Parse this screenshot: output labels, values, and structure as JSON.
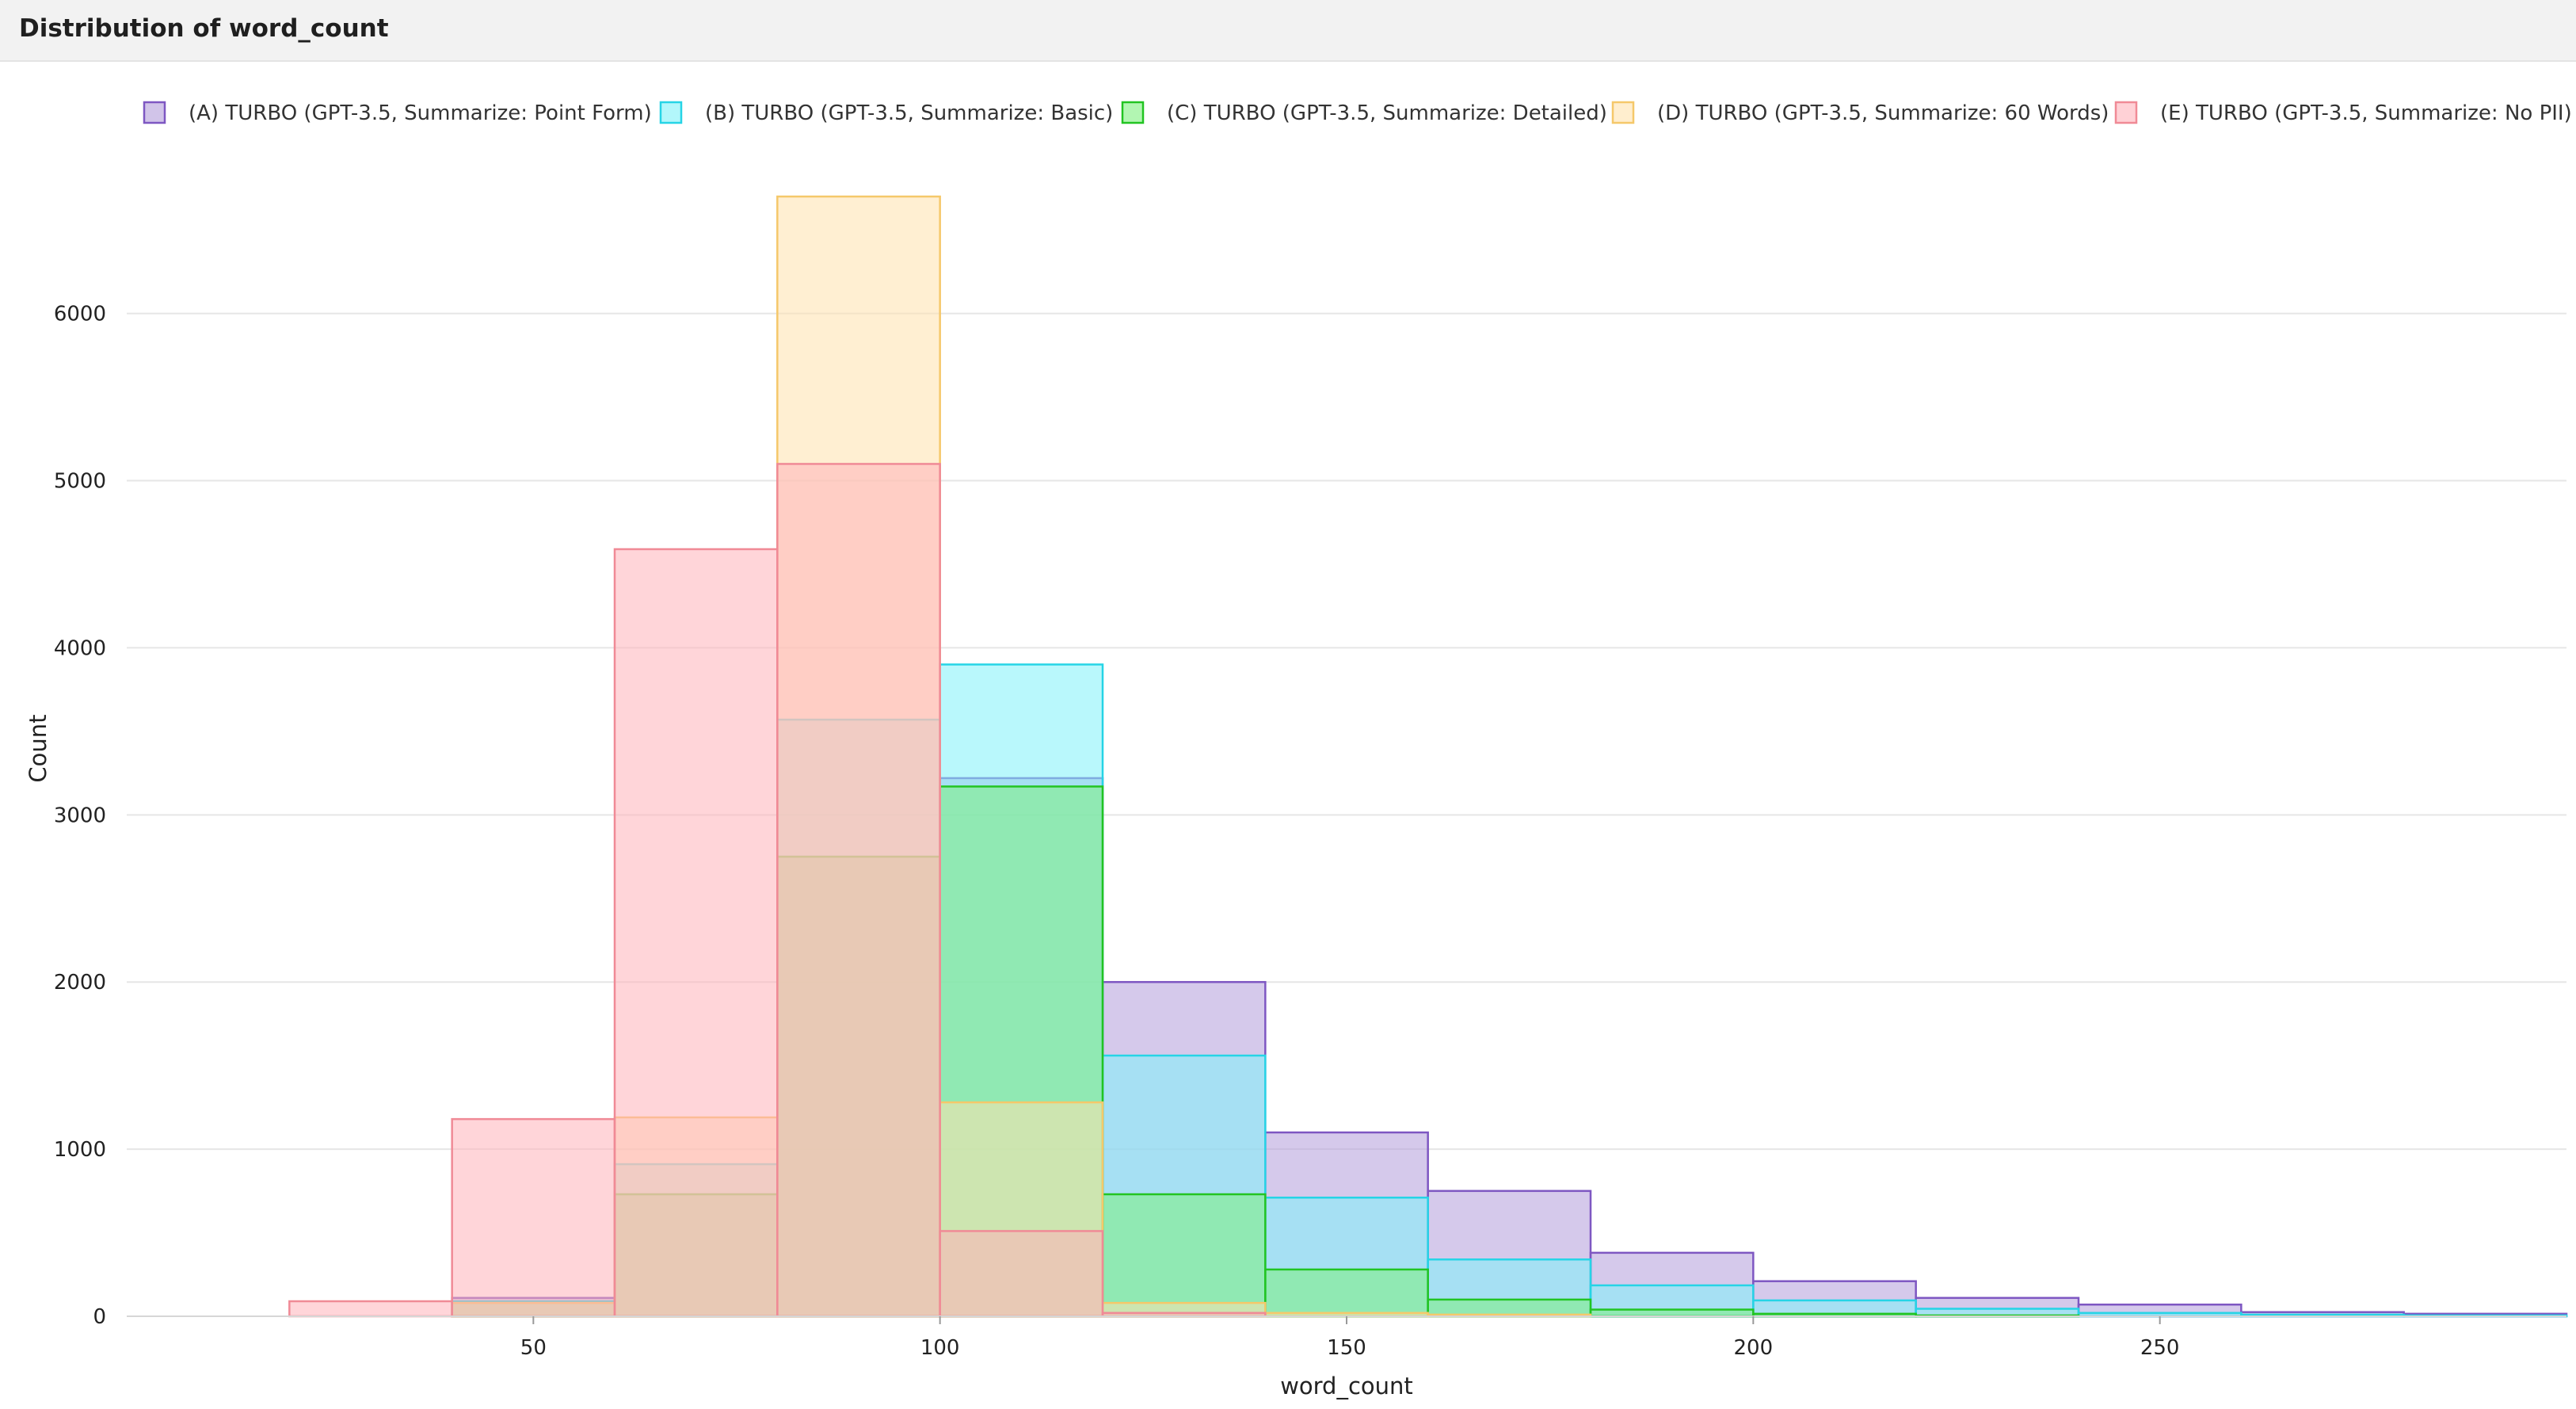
{
  "window": {
    "title": "Distribution of word_count"
  },
  "chart_data": {
    "type": "bar",
    "subtype": "overlaid-histogram",
    "title": "Distribution of word_count",
    "xlabel": "word_count",
    "ylabel": "Count",
    "xlim": [
      0,
      300
    ],
    "ylim": [
      0,
      6700
    ],
    "x_ticks": [
      50,
      100,
      150,
      200,
      250
    ],
    "y_ticks": [
      0,
      1000,
      2000,
      3000,
      4000,
      5000,
      6000
    ],
    "grid": "horizontal",
    "legend_position": "top",
    "bin_edges": [
      0,
      20,
      40,
      60,
      80,
      100,
      120,
      140,
      160,
      180,
      200,
      220,
      240,
      260,
      280,
      300
    ],
    "series": [
      {
        "name": "(A) TURBO (GPT-3.5, Summarize: Point Form)",
        "fill": "#b39ddb",
        "stroke": "#7e57c2",
        "values": [
          0,
          0,
          110,
          730,
          2750,
          3220,
          2000,
          1100,
          750,
          380,
          210,
          110,
          70,
          25,
          15
        ]
      },
      {
        "name": "(B) TURBO (GPT-3.5, Summarize: Basic)",
        "fill": "#7ff2f9",
        "stroke": "#26d4e6",
        "values": [
          0,
          0,
          90,
          910,
          3570,
          3900,
          1560,
          710,
          340,
          185,
          95,
          45,
          20,
          10,
          5
        ]
      },
      {
        "name": "(C) TURBO (GPT-3.5, Summarize: Detailed)",
        "fill": "#7ef07e",
        "stroke": "#22c422",
        "values": [
          0,
          0,
          80,
          730,
          2750,
          3170,
          730,
          280,
          100,
          40,
          15,
          5,
          0,
          0,
          0
        ]
      },
      {
        "name": "(D) TURBO (GPT-3.5, Summarize: 60 Words)",
        "fill": "#ffe2ad",
        "stroke": "#f5c86a",
        "values": [
          0,
          0,
          80,
          1190,
          6700,
          1280,
          80,
          20,
          10,
          0,
          0,
          0,
          0,
          0,
          0
        ]
      },
      {
        "name": "(E) TURBO (GPT-3.5, Summarize: No PII)",
        "fill": "#ffb3ba",
        "stroke": "#f08a96",
        "values": [
          0,
          90,
          1180,
          4590,
          5100,
          510,
          20,
          0,
          0,
          0,
          0,
          0,
          0,
          0,
          0
        ]
      }
    ]
  }
}
